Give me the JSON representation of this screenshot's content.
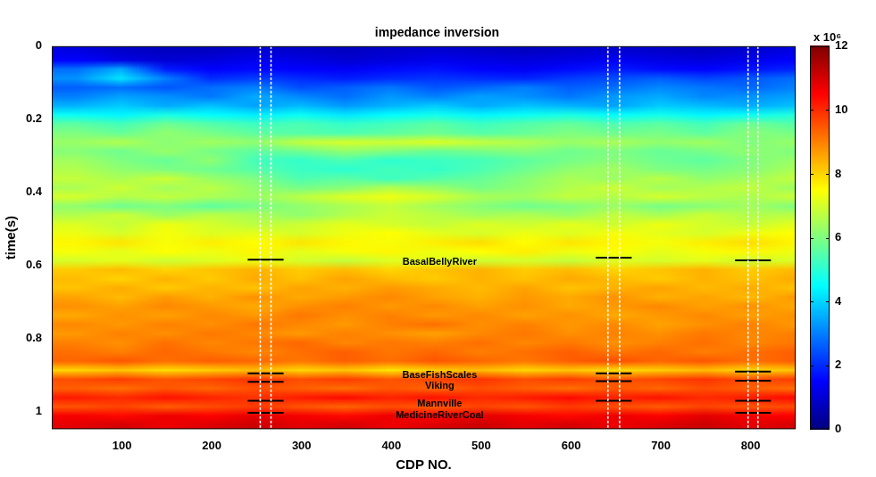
{
  "chart_data": {
    "type": "heatmap",
    "title": "impedance inversion",
    "x_label": "CDP NO.",
    "y_label": "time(s)",
    "color": "jet",
    "xlim": [
      22,
      850
    ],
    "ylim": [
      1.05,
      0
    ],
    "xticks": [
      100,
      200,
      300,
      400,
      500,
      600,
      700,
      800
    ],
    "yticks": [
      0,
      0.2,
      0.4,
      0.6,
      0.8,
      1
    ],
    "colorbar": {
      "range": [
        0,
        12
      ],
      "ticks": [
        0,
        2,
        4,
        6,
        8,
        10,
        12
      ],
      "label": "x 10⁶"
    },
    "x": [
      47,
      97,
      147,
      197,
      247,
      297,
      347,
      397,
      447,
      497,
      547,
      597,
      647,
      697,
      747,
      797,
      847
    ],
    "y": [
      0.0125,
      0.0375,
      0.0625,
      0.0875,
      0.1125,
      0.1375,
      0.1625,
      0.1875,
      0.2125,
      0.2375,
      0.2625,
      0.2875,
      0.3125,
      0.3375,
      0.3625,
      0.3875,
      0.4125,
      0.4375,
      0.4625,
      0.4875,
      0.5125,
      0.5375,
      0.5625,
      0.5875,
      0.6125,
      0.6375,
      0.6625,
      0.6875,
      0.7125,
      0.7375,
      0.7625,
      0.7875,
      0.8125,
      0.8375,
      0.8625,
      0.8875,
      0.9125,
      0.9375,
      0.9625,
      0.9875,
      1.0125,
      1.0375
    ],
    "values": [
      [
        1.2,
        0.9,
        0.8,
        0.8,
        1.0,
        0.9,
        0.8,
        0.9,
        1.0,
        0.9,
        0.8,
        0.9,
        1.0,
        0.9,
        0.8,
        1.0,
        1.2
      ],
      [
        1.5,
        1.2,
        1.0,
        1.1,
        1.3,
        1.2,
        1.0,
        1.1,
        1.3,
        1.2,
        1.1,
        1.2,
        1.4,
        1.2,
        1.1,
        1.3,
        1.5
      ],
      [
        2.8,
        3.5,
        1.8,
        1.5,
        1.6,
        1.5,
        1.4,
        1.6,
        1.7,
        1.5,
        1.4,
        1.6,
        1.8,
        1.6,
        1.5,
        1.7,
        1.9
      ],
      [
        3.2,
        4.2,
        3.0,
        2.0,
        2.2,
        2.0,
        1.8,
        2.0,
        2.1,
        2.0,
        1.9,
        2.2,
        2.4,
        2.6,
        2.3,
        2.5,
        2.8
      ],
      [
        2.6,
        2.8,
        2.5,
        2.8,
        3.0,
        2.4,
        2.6,
        2.9,
        2.5,
        2.7,
        3.0,
        2.6,
        2.8,
        3.1,
        2.9,
        2.7,
        3.0
      ],
      [
        3.0,
        3.4,
        3.2,
        2.9,
        3.5,
        3.1,
        2.8,
        3.3,
        3.0,
        3.4,
        3.2,
        2.9,
        3.3,
        3.5,
        3.1,
        3.2,
        3.4
      ],
      [
        3.6,
        3.9,
        3.5,
        3.8,
        3.4,
        3.7,
        3.3,
        3.6,
        3.9,
        3.5,
        3.8,
        3.6,
        3.4,
        3.9,
        3.7,
        3.5,
        3.8
      ],
      [
        4.6,
        4.4,
        4.8,
        4.5,
        4.3,
        4.6,
        4.2,
        4.5,
        4.7,
        4.4,
        4.6,
        4.8,
        4.5,
        4.7,
        4.4,
        4.6,
        4.9
      ],
      [
        5.6,
        5.3,
        5.8,
        5.5,
        5.2,
        5.4,
        5.1,
        5.3,
        5.6,
        5.2,
        5.5,
        5.7,
        5.4,
        5.6,
        5.3,
        5.8,
        5.5
      ],
      [
        6.0,
        5.7,
        6.2,
        5.9,
        5.6,
        5.5,
        5.4,
        5.6,
        5.8,
        5.5,
        5.7,
        6.0,
        5.8,
        5.9,
        5.6,
        6.1,
        5.9
      ],
      [
        6.3,
        6.6,
        6.1,
        6.4,
        6.2,
        6.8,
        7.0,
        6.9,
        7.1,
        6.8,
        6.6,
        6.3,
        6.5,
        6.2,
        6.4,
        6.0,
        6.3
      ],
      [
        6.1,
        5.8,
        6.3,
        5.9,
        5.6,
        5.8,
        6.2,
        6.0,
        5.7,
        5.9,
        6.1,
        5.8,
        6.0,
        5.7,
        5.9,
        6.2,
        6.0
      ],
      [
        6.4,
        6.0,
        5.7,
        6.2,
        5.3,
        5.1,
        5.4,
        5.0,
        5.2,
        5.3,
        5.6,
        5.9,
        6.1,
        5.8,
        5.6,
        6.0,
        6.3
      ],
      [
        6.6,
        6.2,
        6.0,
        5.8,
        5.5,
        5.2,
        5.0,
        5.3,
        5.1,
        5.4,
        5.8,
        6.2,
        6.4,
        6.0,
        5.9,
        6.1,
        6.5
      ],
      [
        6.8,
        6.5,
        6.9,
        6.3,
        6.0,
        5.4,
        5.6,
        5.2,
        5.5,
        5.7,
        6.1,
        6.5,
        6.3,
        6.7,
        6.2,
        6.4,
        6.8
      ],
      [
        6.5,
        6.9,
        6.4,
        6.7,
        6.2,
        5.9,
        6.1,
        6.6,
        6.3,
        5.9,
        6.2,
        6.6,
        6.9,
        6.4,
        6.6,
        6.8,
        6.3
      ],
      [
        7.0,
        6.6,
        6.8,
        6.5,
        6.3,
        6.7,
        7.1,
        7.3,
        7.0,
        6.5,
        6.4,
        6.8,
        6.6,
        7.0,
        6.7,
        6.5,
        6.9
      ],
      [
        6.2,
        5.8,
        6.0,
        5.6,
        5.9,
        6.2,
        6.5,
        6.8,
        6.4,
        6.1,
        5.8,
        6.0,
        6.3,
        5.9,
        6.1,
        6.4,
        6.0
      ],
      [
        6.6,
        6.9,
        6.3,
        6.7,
        6.5,
        6.2,
        6.6,
        6.9,
        6.7,
        6.4,
        6.6,
        6.3,
        6.8,
        6.5,
        6.9,
        6.6,
        6.7
      ],
      [
        7.1,
        6.8,
        7.3,
        7.0,
        6.7,
        6.9,
        7.2,
        7.0,
        6.8,
        7.1,
        6.9,
        7.2,
        6.9,
        7.3,
        7.0,
        6.8,
        7.2
      ],
      [
        7.3,
        7.0,
        7.4,
        7.1,
        7.2,
        7.0,
        7.3,
        7.5,
        7.2,
        7.0,
        7.3,
        7.1,
        7.4,
        7.2,
        7.0,
        7.3,
        7.5
      ],
      [
        7.6,
        7.8,
        7.4,
        7.7,
        7.5,
        7.8,
        7.6,
        7.4,
        7.7,
        7.9,
        7.5,
        7.8,
        7.6,
        7.4,
        7.7,
        7.9,
        7.6
      ],
      [
        7.4,
        7.2,
        7.5,
        7.3,
        7.6,
        7.2,
        7.4,
        7.6,
        7.3,
        7.5,
        7.7,
        7.3,
        7.5,
        7.2,
        7.4,
        7.6,
        7.3
      ],
      [
        7.0,
        7.2,
        6.9,
        7.1,
        7.3,
        7.0,
        6.8,
        7.1,
        7.2,
        6.9,
        7.0,
        6.8,
        7.1,
        7.0,
        7.2,
        6.9,
        7.1
      ],
      [
        8.1,
        8.3,
        8.0,
        8.2,
        8.4,
        8.1,
        8.3,
        8.0,
        8.2,
        8.4,
        8.1,
        8.3,
        8.0,
        8.2,
        8.4,
        8.1,
        8.3
      ],
      [
        8.3,
        8.0,
        8.4,
        8.1,
        8.5,
        8.2,
        8.6,
        8.3,
        8.1,
        8.4,
        8.2,
        8.5,
        8.3,
        8.1,
        8.4,
        8.2,
        8.5
      ],
      [
        8.2,
        8.5,
        8.1,
        8.4,
        8.2,
        8.6,
        8.4,
        8.7,
        8.5,
        8.3,
        8.6,
        8.2,
        8.4,
        8.6,
        8.3,
        8.5,
        8.2
      ],
      [
        8.6,
        8.3,
        8.7,
        8.4,
        8.8,
        8.5,
        8.7,
        8.9,
        8.6,
        8.4,
        8.7,
        8.5,
        8.8,
        8.4,
        8.6,
        8.3,
        8.7
      ],
      [
        8.8,
        8.6,
        8.9,
        8.7,
        8.5,
        8.8,
        9.0,
        8.7,
        8.9,
        8.6,
        8.8,
        8.5,
        8.7,
        8.9,
        8.6,
        8.8,
        8.5
      ],
      [
        8.5,
        8.8,
        8.6,
        8.9,
        8.7,
        9.1,
        8.8,
        9.0,
        8.7,
        8.9,
        8.6,
        8.8,
        8.5,
        8.7,
        8.9,
        8.6,
        8.8
      ],
      [
        8.9,
        8.7,
        9.0,
        8.8,
        9.1,
        8.9,
        8.7,
        9.0,
        9.2,
        8.8,
        9.0,
        8.7,
        8.9,
        8.6,
        8.8,
        9.0,
        8.7
      ],
      [
        8.7,
        9.0,
        8.8,
        9.1,
        8.9,
        8.7,
        9.0,
        8.8,
        8.6,
        8.9,
        9.1,
        8.8,
        9.0,
        8.8,
        9.1,
        8.9,
        9.0
      ],
      [
        9.0,
        8.8,
        9.2,
        8.9,
        9.1,
        9.3,
        8.9,
        9.1,
        9.0,
        9.2,
        8.9,
        9.1,
        8.8,
        9.0,
        9.2,
        8.9,
        9.1
      ],
      [
        9.2,
        9.0,
        9.3,
        9.1,
        8.9,
        9.2,
        9.4,
        9.1,
        9.3,
        9.0,
        9.2,
        9.4,
        9.1,
        9.3,
        9.0,
        9.2,
        9.4
      ],
      [
        9.3,
        9.5,
        9.2,
        9.4,
        9.3,
        9.1,
        9.4,
        9.2,
        9.5,
        9.3,
        9.1,
        9.4,
        9.6,
        9.3,
        9.5,
        9.2,
        9.4
      ],
      [
        8.0,
        8.2,
        7.9,
        8.1,
        8.3,
        8.0,
        8.2,
        7.8,
        8.1,
        8.3,
        8.0,
        8.2,
        7.9,
        8.1,
        8.3,
        8.0,
        8.2
      ],
      [
        9.6,
        9.8,
        9.5,
        9.7,
        9.9,
        9.6,
        9.8,
        9.5,
        9.7,
        9.9,
        9.6,
        9.8,
        9.5,
        9.7,
        9.9,
        9.6,
        9.8
      ],
      [
        9.4,
        9.2,
        9.5,
        9.3,
        9.6,
        9.4,
        9.2,
        9.5,
        9.3,
        9.6,
        9.4,
        9.2,
        9.5,
        9.3,
        9.6,
        9.4,
        9.2
      ],
      [
        10.2,
        10.0,
        10.3,
        10.1,
        9.9,
        10.2,
        10.4,
        10.1,
        10.3,
        10.0,
        10.2,
        10.4,
        10.1,
        10.3,
        10.0,
        10.2,
        10.4
      ],
      [
        9.5,
        9.7,
        9.4,
        9.6,
        9.8,
        9.5,
        9.3,
        9.6,
        9.4,
        9.7,
        9.5,
        9.8,
        9.6,
        9.4,
        9.7,
        9.5,
        9.6
      ],
      [
        10.6,
        10.4,
        10.7,
        10.5,
        10.8,
        10.6,
        10.4,
        10.7,
        10.5,
        10.8,
        10.6,
        10.4,
        10.7,
        10.5,
        10.8,
        10.6,
        10.5
      ],
      [
        10.8,
        11.0,
        10.7,
        10.9,
        11.1,
        10.8,
        11.0,
        10.7,
        10.9,
        11.1,
        10.8,
        11.0,
        10.7,
        10.9,
        11.1,
        10.8,
        11.0
      ]
    ],
    "wells": [
      [
        254,
        266
      ],
      [
        641,
        654
      ],
      [
        797,
        808
      ]
    ],
    "horizons": [
      {
        "name": "BasalBellyRiver",
        "times": [
          0.585,
          0.58,
          0.587
        ]
      },
      {
        "name": "BaseFishScales",
        "times": [
          0.897,
          0.897,
          0.892
        ]
      },
      {
        "name": "Viking",
        "times": [
          0.92,
          0.918,
          0.917
        ]
      },
      {
        "name": "Mannville",
        "times": [
          0.972,
          0.972,
          0.972
        ]
      },
      {
        "name": "MedicineRiverCoal",
        "times": [
          1.005,
          null,
          1.005
        ]
      }
    ]
  }
}
